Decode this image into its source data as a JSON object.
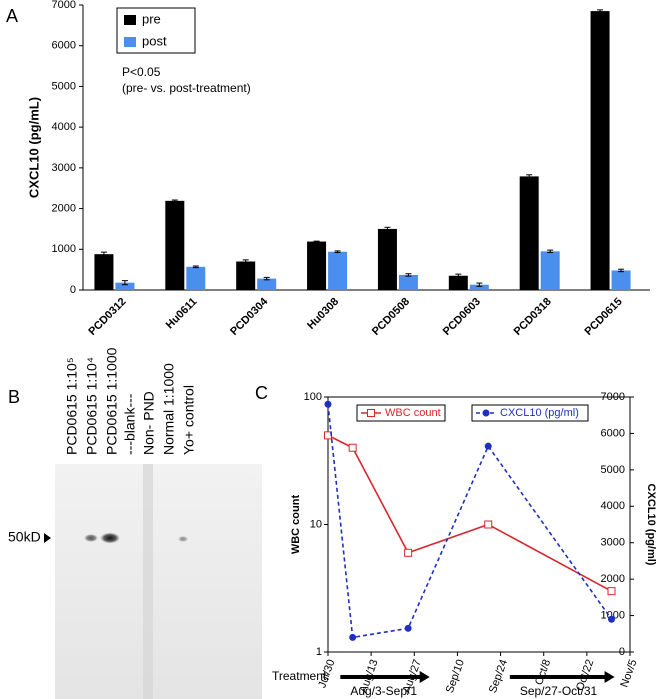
{
  "chart_data": [
    {
      "type": "bar",
      "label": "A",
      "ylabel": "CXCL10 (pg/mL)",
      "annotations": [
        "P<0.05",
        "(pre- vs. post-treatment)"
      ],
      "categories": [
        "PCD0312",
        "Hu0611",
        "PCD0304",
        "Hu0308",
        "PCD0508",
        "PCD0603",
        "PCD0318",
        "PCD0615"
      ],
      "series": [
        {
          "name": "pre",
          "color": "#000000",
          "values": [
            880,
            2190,
            700,
            1190,
            1500,
            350,
            2790,
            6850
          ],
          "errors": [
            50,
            20,
            40,
            10,
            40,
            40,
            40,
            30
          ]
        },
        {
          "name": "post",
          "color": "#4a8ff0",
          "values": [
            180,
            570,
            280,
            940,
            370,
            130,
            950,
            480
          ],
          "errors": [
            50,
            20,
            30,
            20,
            30,
            40,
            30,
            30
          ]
        }
      ],
      "ylim": [
        0,
        7000
      ],
      "yticks": [
        0,
        1000,
        2000,
        3000,
        4000,
        5000,
        6000,
        7000
      ],
      "legend": "upper-left"
    },
    {
      "type": "line",
      "label": "C",
      "ylabel": "WBC count",
      "y2label": "CXCL10 (pg/ml)",
      "log_y": true,
      "xlim": [
        "Jul/30",
        "Nov/5"
      ],
      "xticks": [
        "Jul/30",
        "Aug/13",
        "Aug/27",
        "Sep/10",
        "Sep/24",
        "Oct/8",
        "Oct/22",
        "Nov/5"
      ],
      "ylim": [
        1,
        100
      ],
      "yticks": [
        1,
        10,
        100
      ],
      "y2lim": [
        0,
        7000
      ],
      "y2ticks": [
        0,
        1000,
        2000,
        3000,
        4000,
        5000,
        6000,
        7000
      ],
      "series": [
        {
          "name": "WBC count",
          "color": "#d9262b",
          "line_style": "solid",
          "marker": "square-open",
          "x": [
            "Jul/30",
            "Aug/7",
            "Aug/25",
            "Sep/20",
            "Oct/30"
          ],
          "values": [
            50,
            40,
            6,
            10,
            3
          ]
        },
        {
          "name": "CXCL10 (pg/ml)",
          "color": "#1f2fbf",
          "line_style": "dashed",
          "marker": "circle",
          "axis": "y2",
          "x": [
            "Jul/30",
            "Aug/7",
            "Aug/25",
            "Sep/20",
            "Oct/30"
          ],
          "values": [
            6800,
            400,
            650,
            5650,
            900
          ]
        }
      ],
      "treatment_label": "Treatment:",
      "treatments": [
        "Aug/3-Sep/1",
        "Sep/27-Oct/31"
      ],
      "legend": "top"
    }
  ],
  "blot": {
    "label": "B",
    "lanes": [
      "PCD0615 1:10⁵",
      "PCD0615 1:10⁴",
      "PCD0615 1:1000",
      "---blank---",
      "Non- PND",
      "Normal 1:1000",
      "Yo+ control"
    ],
    "marker": "50kD"
  }
}
